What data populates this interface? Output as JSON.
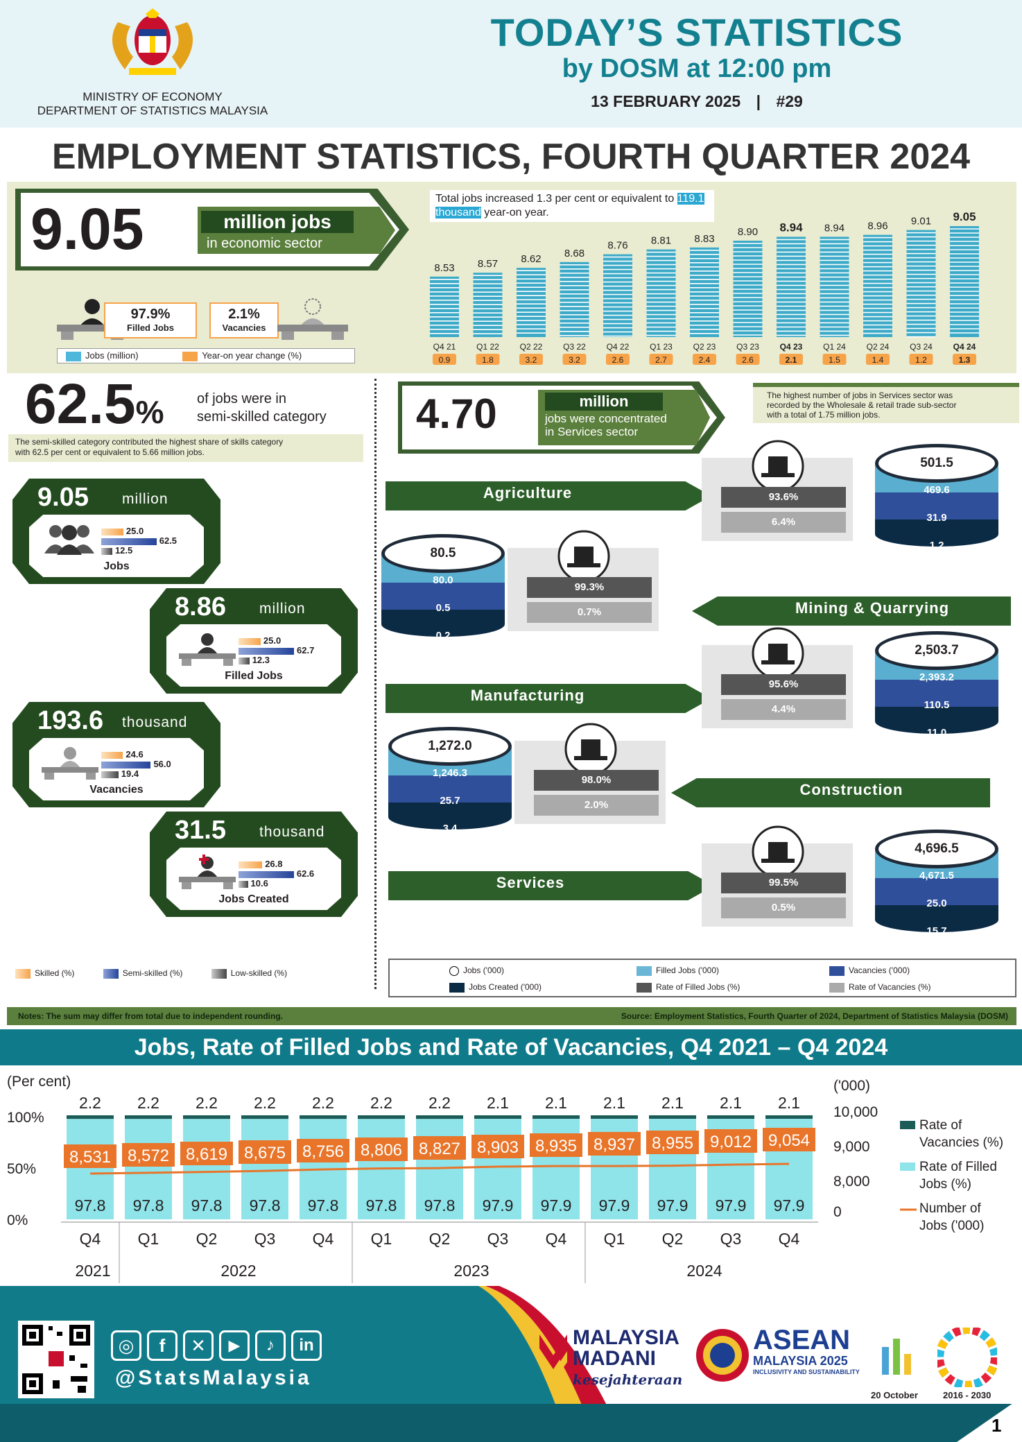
{
  "header": {
    "ministry_line1": "MINISTRY OF ECONOMY",
    "ministry_line2": "DEPARTMENT OF STATISTICS MALAYSIA",
    "title": "TODAY’S STATISTICS",
    "subtitle": "by DOSM at 12:00 pm",
    "date": "13 FEBRUARY 2025",
    "separator": "|",
    "issue": "#29"
  },
  "main_title": "EMPLOYMENT STATISTICS, FOURTH QUARTER 2024",
  "hero": {
    "value": "9.05",
    "label": "million jobs",
    "sublabel": "in economic sector",
    "filled_value": "97.9%",
    "filled_label": "Filled Jobs",
    "vacancy_value": "2.1%",
    "vacancy_label": "Vacancies",
    "note_before": "Total jobs increased 1.3 per cent or equivalent to ",
    "note_highlight": "119.1 thousand",
    "note_after": " year-on year.",
    "legend_jobs": "Jobs (million)",
    "legend_yoy": "Year-on year change (%)"
  },
  "colors": {
    "teal_bar": "#1f9fc7",
    "orange_label": "#f6a34a",
    "dark_green": "#244b1f",
    "mid_green": "#2d5f2a",
    "section_blue": "#0f7b8a",
    "filled_rate": "#8ee4e9",
    "vacancy_rate": "#1b5c57",
    "jobs_line": "#e8752a"
  },
  "skills": {
    "percent_value": "62.5",
    "percent_sign": "%",
    "caption_line1": "of jobs were in",
    "caption_line2": "semi-skilled category",
    "note_line1": "The semi-skilled category contributed the highest share of skills category",
    "note_line2": "with 62.5 per cent or equivalent to 5.66 million jobs.",
    "boxes": [
      {
        "value": "9.05",
        "unit": "million",
        "label": "Jobs",
        "skilled": "25.0",
        "semi": "62.5",
        "low": "12.5"
      },
      {
        "value": "8.86",
        "unit": "million",
        "label": "Filled Jobs",
        "skilled": "25.0",
        "semi": "62.7",
        "low": "12.3"
      },
      {
        "value": "193.6",
        "unit": "thousand",
        "label": "Vacancies",
        "skilled": "24.6",
        "semi": "56.0",
        "low": "19.4"
      },
      {
        "value": "31.5",
        "unit": "thousand",
        "label": "Jobs Created",
        "skilled": "26.8",
        "semi": "62.6",
        "low": "10.6"
      }
    ],
    "legend": [
      "Skilled (%)",
      "Semi-skilled (%)",
      "Low-skilled (%)"
    ]
  },
  "services_hero": {
    "value": "4.70",
    "label": "million",
    "sub_line1": "jobs were concentrated",
    "sub_line2": "in Services sector",
    "note_line1": "The highest number of jobs in Services sector was",
    "note_line2": "recorded by the Wholesale & retail trade sub-sector",
    "note_line3": "with a total of 1.75 million jobs."
  },
  "sectors": [
    {
      "name": "Agriculture",
      "jobs": "501.5",
      "filled": "469.6",
      "vacancies": "31.9",
      "created": "1.2",
      "filled_rate": "93.6%",
      "vacancy_rate": "6.4%"
    },
    {
      "name": "Mining & Quarrying",
      "jobs": "80.5",
      "filled": "80.0",
      "vacancies": "0.5",
      "created": "0.2",
      "filled_rate": "99.3%",
      "vacancy_rate": "0.7%"
    },
    {
      "name": "Manufacturing",
      "jobs": "2,503.7",
      "filled": "2,393.2",
      "vacancies": "110.5",
      "created": "11.0",
      "filled_rate": "95.6%",
      "vacancy_rate": "4.4%"
    },
    {
      "name": "Construction",
      "jobs": "1,272.0",
      "filled": "1,246.3",
      "vacancies": "25.7",
      "created": "3.4",
      "filled_rate": "98.0%",
      "vacancy_rate": "2.0%"
    },
    {
      "name": "Services",
      "jobs": "4,696.5",
      "filled": "4,671.5",
      "vacancies": "25.0",
      "created": "15.7",
      "filled_rate": "99.5%",
      "vacancy_rate": "0.5%"
    }
  ],
  "sector_legend": [
    "Jobs ('000)",
    "Filled Jobs ('000)",
    "Vacancies ('000)",
    "Jobs Created ('000)",
    "Rate of Filled Jobs (%)",
    "Rate of Vacancies (%)"
  ],
  "notes": "Notes: The sum may differ from total due to independent rounding.",
  "source": "Source: Employment Statistics, Fourth Quarter of 2024, Department of Statistics Malaysia (DOSM)",
  "section2_title": "Jobs, Rate of Filled Jobs and Rate of Vacancies, Q4 2021 – Q4 2024",
  "footer": {
    "handle": "@StatsMalaysia",
    "madani_line1": "MALAYSIA",
    "madani_line2": "MADANI",
    "madani_line3": "kesejahteraan",
    "asean_line1": "ASEAN",
    "asean_line2": "MALAYSIA 2025",
    "asean_line3": "INCLUSIVITY AND SUSTAINABILITY",
    "wsd_date": "20 October",
    "sdg_years": "2016 - 2030",
    "page_number": "1"
  },
  "chart_data": [
    {
      "type": "bar",
      "categories": [
        "Q4 21",
        "Q1 22",
        "Q2 22",
        "Q3 22",
        "Q4 22",
        "Q1 23",
        "Q2 23",
        "Q3 23",
        "Q4 23",
        "Q1 24",
        "Q2 24",
        "Q3 24",
        "Q4 24"
      ],
      "values": [
        8.53,
        8.57,
        8.62,
        8.68,
        8.76,
        8.81,
        8.83,
        8.9,
        8.94,
        8.94,
        8.96,
        9.01,
        9.05
      ],
      "value_labels": [
        "8.53",
        "8.57",
        "8.62",
        "8.68",
        "8.76",
        "8.81",
        "8.83",
        "8.90",
        "8.94",
        "8.94",
        "8.96",
        "9.01",
        "9.05"
      ],
      "yoy_labels": [
        "0.9",
        "1.8",
        "3.2",
        "3.2",
        "2.6",
        "2.7",
        "2.4",
        "2.6",
        "2.1",
        "1.5",
        "1.4",
        "1.2",
        "1.3"
      ],
      "series": [
        {
          "name": "Jobs (million)",
          "values": [
            8.53,
            8.57,
            8.62,
            8.68,
            8.76,
            8.81,
            8.83,
            8.9,
            8.94,
            8.94,
            8.96,
            9.01,
            9.05
          ]
        },
        {
          "name": "Year-on year change (%)",
          "values": [
            0.9,
            1.8,
            3.2,
            3.2,
            2.6,
            2.7,
            2.4,
            2.6,
            2.1,
            1.5,
            1.4,
            1.2,
            1.3
          ]
        }
      ]
    },
    {
      "type": "bar",
      "quarters": [
        "Q4",
        "Q1",
        "Q2",
        "Q3",
        "Q4",
        "Q1",
        "Q2",
        "Q3",
        "Q4",
        "Q1",
        "Q2",
        "Q3",
        "Q4"
      ],
      "years": [
        {
          "label": "2021",
          "span": 1
        },
        {
          "label": "2022",
          "span": 4
        },
        {
          "label": "2023",
          "span": 4
        },
        {
          "label": "2024",
          "span": 4
        }
      ],
      "ylabel_left": "(Per cent)",
      "ylabel_right": "('000)",
      "left_ticks": [
        "100%",
        "50%",
        "0%"
      ],
      "right_ticks": [
        "10,000",
        "9,000",
        "8,000",
        "0"
      ],
      "series": [
        {
          "name": "Rate of Vacancies (%)",
          "values": [
            2.2,
            2.2,
            2.2,
            2.2,
            2.2,
            2.2,
            2.2,
            2.1,
            2.1,
            2.1,
            2.1,
            2.1,
            2.1
          ]
        },
        {
          "name": "Rate of Filled Jobs (%)",
          "values": [
            97.8,
            97.8,
            97.8,
            97.8,
            97.8,
            97.8,
            97.8,
            97.9,
            97.9,
            97.9,
            97.9,
            97.9,
            97.9
          ]
        },
        {
          "name": "Number of Jobs ('000)",
          "values": [
            8531,
            8572,
            8619,
            8675,
            8756,
            8806,
            8827,
            8903,
            8935,
            8937,
            8955,
            9012,
            9054
          ]
        }
      ],
      "jobs_labels": [
        "8,531",
        "8,572",
        "8,619",
        "8,675",
        "8,756",
        "8,806",
        "8,827",
        "8,903",
        "8,935",
        "8,937",
        "8,955",
        "9,012",
        "9,054"
      ],
      "legend_lines": [
        [
          "Rate of",
          "Vacancies (%)"
        ],
        [
          "Rate of Filled",
          "Jobs (%)"
        ],
        [
          "Number of",
          "Jobs ('000)"
        ]
      ]
    }
  ]
}
